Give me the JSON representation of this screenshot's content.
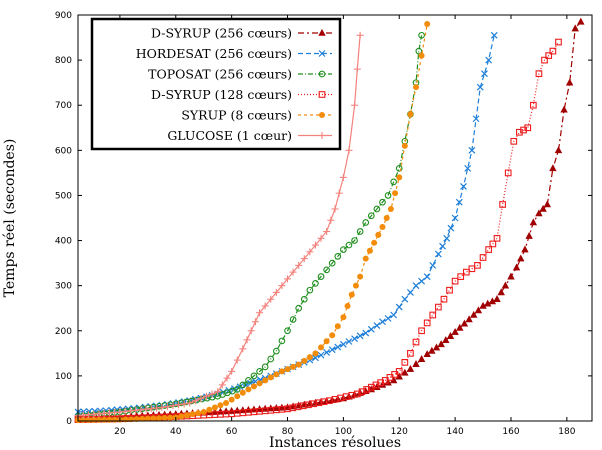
{
  "chart_data": {
    "type": "line",
    "xlabel": "Instances résolues",
    "ylabel": "Temps réel (secondes)",
    "xlim": [
      5,
      189
    ],
    "ylim": [
      0,
      900
    ],
    "xticks": [
      20,
      40,
      60,
      80,
      100,
      120,
      140,
      160,
      180
    ],
    "yticks": [
      0,
      100,
      200,
      300,
      400,
      500,
      600,
      700,
      800,
      900
    ],
    "grid": false,
    "legend_position": "top-left",
    "series": [
      {
        "name": "D-SYRUP (256 cœurs)",
        "color": "#a00000",
        "marker": "triangle",
        "dash": "6 3 2 3",
        "points": [
          [
            5,
            5
          ],
          [
            20,
            9
          ],
          [
            40,
            15
          ],
          [
            60,
            22
          ],
          [
            80,
            30
          ],
          [
            100,
            50
          ],
          [
            110,
            70
          ],
          [
            118,
            90
          ],
          [
            124,
            115
          ],
          [
            130,
            148
          ],
          [
            135,
            170
          ],
          [
            140,
            197
          ],
          [
            145,
            225
          ],
          [
            150,
            255
          ],
          [
            155,
            270
          ],
          [
            158,
            300
          ],
          [
            162,
            340
          ],
          [
            165,
            380
          ],
          [
            168,
            440
          ],
          [
            170,
            460
          ],
          [
            173,
            480
          ],
          [
            175,
            560
          ],
          [
            177,
            600
          ],
          [
            179,
            690
          ],
          [
            181,
            750
          ],
          [
            183,
            870
          ],
          [
            185,
            885
          ]
        ]
      },
      {
        "name": "HORDESAT (256 cœurs)",
        "color": "#1e7fd8",
        "marker": "x",
        "dash": "5 3",
        "points": [
          [
            5,
            20
          ],
          [
            15,
            23
          ],
          [
            25,
            28
          ],
          [
            35,
            35
          ],
          [
            45,
            45
          ],
          [
            55,
            60
          ],
          [
            65,
            80
          ],
          [
            72,
            95
          ],
          [
            80,
            115
          ],
          [
            90,
            140
          ],
          [
            100,
            170
          ],
          [
            108,
            195
          ],
          [
            114,
            220
          ],
          [
            118,
            235
          ],
          [
            122,
            270
          ],
          [
            126,
            300
          ],
          [
            130,
            320
          ],
          [
            134,
            370
          ],
          [
            137,
            405
          ],
          [
            140,
            450
          ],
          [
            143,
            520
          ],
          [
            146,
            600
          ],
          [
            149,
            740
          ],
          [
            152,
            800
          ],
          [
            154,
            855
          ]
        ]
      },
      {
        "name": "TOPOSAT (256 cœurs)",
        "color": "#1f8f1f",
        "marker": "circle",
        "dash": "5 2 1 2",
        "points": [
          [
            5,
            10
          ],
          [
            20,
            20
          ],
          [
            40,
            38
          ],
          [
            55,
            55
          ],
          [
            62,
            70
          ],
          [
            68,
            100
          ],
          [
            72,
            120
          ],
          [
            76,
            155
          ],
          [
            80,
            200
          ],
          [
            84,
            250
          ],
          [
            88,
            290
          ],
          [
            92,
            320
          ],
          [
            96,
            350
          ],
          [
            100,
            380
          ],
          [
            104,
            400
          ],
          [
            108,
            440
          ],
          [
            112,
            470
          ],
          [
            116,
            500
          ],
          [
            120,
            560
          ],
          [
            122,
            620
          ],
          [
            124,
            680
          ],
          [
            126,
            750
          ],
          [
            127,
            820
          ],
          [
            128,
            855
          ]
        ]
      },
      {
        "name": "D-SYRUP (128 cœurs)",
        "color": "#ee1c1c",
        "marker": "square",
        "dash": "1 2",
        "points": [
          [
            5,
            3
          ],
          [
            20,
            5
          ],
          [
            40,
            10
          ],
          [
            60,
            16
          ],
          [
            80,
            27
          ],
          [
            95,
            45
          ],
          [
            105,
            60
          ],
          [
            110,
            75
          ],
          [
            115,
            90
          ],
          [
            120,
            110
          ],
          [
            124,
            150
          ],
          [
            128,
            200
          ],
          [
            132,
            235
          ],
          [
            136,
            270
          ],
          [
            140,
            310
          ],
          [
            144,
            330
          ],
          [
            148,
            345
          ],
          [
            152,
            380
          ],
          [
            155,
            405
          ],
          [
            157,
            480
          ],
          [
            159,
            550
          ],
          [
            161,
            620
          ],
          [
            163,
            640
          ],
          [
            166,
            650
          ],
          [
            168,
            700
          ],
          [
            170,
            770
          ],
          [
            172,
            800
          ],
          [
            175,
            820
          ],
          [
            177,
            840
          ]
        ]
      },
      {
        "name": "SYRUP (8 cœurs)",
        "color": "#f28c0a",
        "marker": "dot",
        "dash": "3 3",
        "points": [
          [
            5,
            2
          ],
          [
            20,
            3
          ],
          [
            40,
            8
          ],
          [
            50,
            20
          ],
          [
            58,
            40
          ],
          [
            66,
            70
          ],
          [
            72,
            90
          ],
          [
            78,
            110
          ],
          [
            84,
            125
          ],
          [
            90,
            150
          ],
          [
            96,
            190
          ],
          [
            100,
            230
          ],
          [
            103,
            280
          ],
          [
            106,
            320
          ],
          [
            108,
            360
          ],
          [
            111,
            395
          ],
          [
            114,
            430
          ],
          [
            117,
            470
          ],
          [
            120,
            540
          ],
          [
            122,
            610
          ],
          [
            124,
            680
          ],
          [
            126,
            740
          ],
          [
            128,
            810
          ],
          [
            130,
            880
          ]
        ]
      },
      {
        "name": "GLUCOSE (1 cœur)",
        "color": "#f4827c",
        "marker": "plus",
        "dash": "none",
        "points": [
          [
            5,
            12
          ],
          [
            20,
            20
          ],
          [
            35,
            30
          ],
          [
            45,
            40
          ],
          [
            55,
            65
          ],
          [
            60,
            110
          ],
          [
            64,
            160
          ],
          [
            67,
            200
          ],
          [
            70,
            240
          ],
          [
            74,
            270
          ],
          [
            78,
            300
          ],
          [
            82,
            330
          ],
          [
            86,
            360
          ],
          [
            90,
            390
          ],
          [
            94,
            420
          ],
          [
            97,
            470
          ],
          [
            100,
            540
          ],
          [
            102,
            600
          ],
          [
            104,
            700
          ],
          [
            105,
            780
          ],
          [
            106,
            855
          ]
        ]
      }
    ]
  }
}
